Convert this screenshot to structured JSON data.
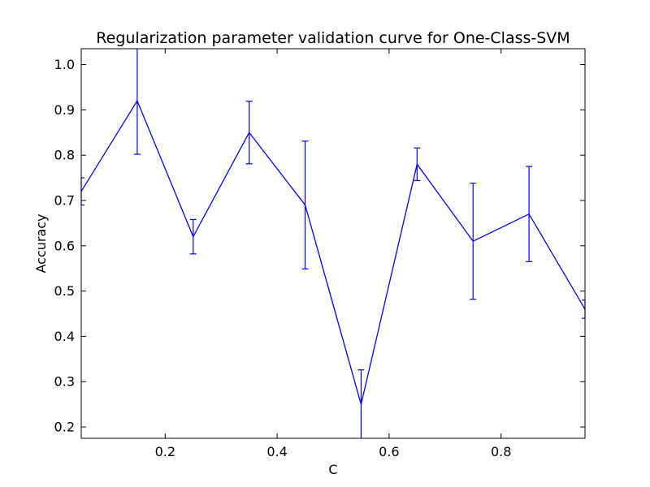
{
  "chart_data": {
    "type": "line",
    "title": "Regularization parameter validation curve for One-Class-SVM",
    "xlabel": "C",
    "ylabel": "Accuracy",
    "xlim": [
      0.05,
      0.95
    ],
    "ylim": [
      0.175,
      1.035
    ],
    "xticks": [
      0.2,
      0.4,
      0.6,
      0.8
    ],
    "xtick_labels": [
      "0.2",
      "0.4",
      "0.6",
      "0.8"
    ],
    "yticks": [
      0.2,
      0.3,
      0.4,
      0.5,
      0.6,
      0.7,
      0.8,
      0.9,
      1.0
    ],
    "ytick_labels": [
      "0.2",
      "0.3",
      "0.4",
      "0.5",
      "0.6",
      "0.7",
      "0.8",
      "0.9",
      "1.0"
    ],
    "grid": false,
    "color": "#0000ff",
    "x": [
      0.05,
      0.15,
      0.25,
      0.35,
      0.45,
      0.55,
      0.65,
      0.75,
      0.85,
      0.95
    ],
    "y": [
      0.72,
      0.92,
      0.62,
      0.85,
      0.69,
      0.25,
      0.78,
      0.61,
      0.67,
      0.46
    ],
    "yerr": [
      0.03,
      0.118,
      0.038,
      0.069,
      0.141,
      0.076,
      0.036,
      0.128,
      0.105,
      0.02
    ]
  }
}
